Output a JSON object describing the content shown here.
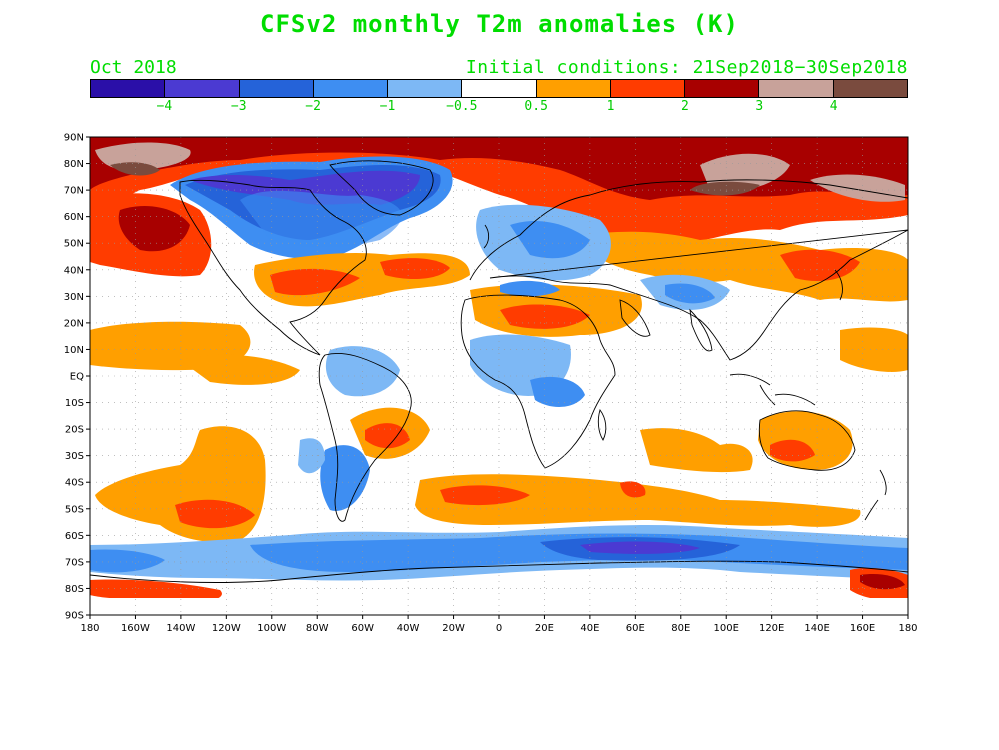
{
  "title": "CFSv2 monthly T2m anomalies (K)",
  "month": "Oct 2018",
  "initial_conditions": "Initial conditions: 21Sep2018−30Sep2018",
  "colorbar": {
    "colors": [
      "#2a0fa8",
      "#4b3ad2",
      "#2563d9",
      "#3e8ef2",
      "#7db8f5",
      "#ffffff",
      "#ff9f00",
      "#ff3c00",
      "#a80000",
      "#c8a29a",
      "#7a4b3e"
    ],
    "labels": [
      "−4",
      "−3",
      "−2",
      "−1",
      "−0.5",
      "0.5",
      "1",
      "2",
      "3",
      "4"
    ]
  },
  "map": {
    "lat_labels": [
      "90N",
      "80N",
      "70N",
      "60N",
      "50N",
      "40N",
      "30N",
      "20N",
      "10N",
      "EQ",
      "10S",
      "20S",
      "30S",
      "40S",
      "50S",
      "60S",
      "70S",
      "80S",
      "90S"
    ],
    "lon_labels": [
      "180",
      "160W",
      "140W",
      "120W",
      "100W",
      "80W",
      "60W",
      "40W",
      "20W",
      "0",
      "20E",
      "40E",
      "60E",
      "80E",
      "100E",
      "120E",
      "140E",
      "160E",
      "180"
    ]
  }
}
